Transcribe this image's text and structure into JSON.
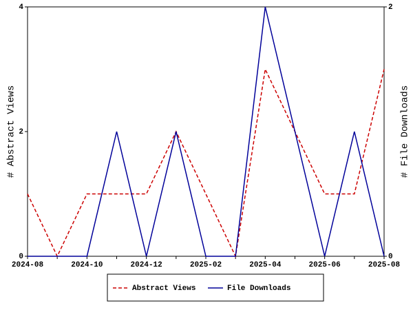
{
  "chart_data": {
    "type": "line",
    "categories": [
      "2024-08",
      null,
      "2024-10",
      null,
      "2024-12",
      null,
      "2025-02",
      null,
      "2025-04",
      null,
      "2025-06",
      null,
      "2025-08"
    ],
    "y_label": "# Abstract Views",
    "y2_label": "# File Downloads",
    "series": [
      {
        "name": "Abstract Views",
        "color": "#cc0000",
        "dashed": true,
        "values": [
          1,
          0,
          1,
          1,
          1,
          2,
          1,
          0,
          3,
          2,
          1,
          1,
          3
        ]
      },
      {
        "name": "File Downloads",
        "color": "#000099",
        "dashed": false,
        "axis": "y2",
        "values": [
          0,
          0,
          0,
          1,
          0,
          1,
          0,
          0,
          2,
          1,
          0,
          1,
          0
        ]
      }
    ],
    "ylim": [
      0,
      4
    ],
    "yticks": [
      0,
      2,
      4
    ],
    "y2lim": [
      0,
      2
    ],
    "y2ticks": [
      0,
      2
    ],
    "legend": "bottom"
  }
}
